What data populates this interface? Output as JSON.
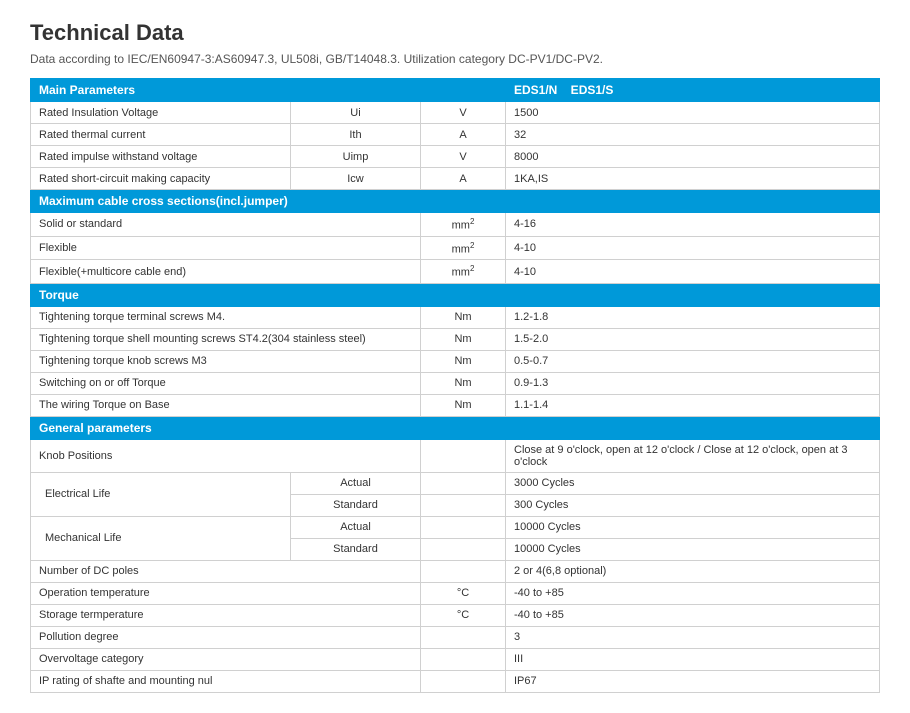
{
  "title": "Technical Data",
  "subtitle": "Data according to IEC/EN60947-3:AS60947.3, UL508i, GB/T14048.3. Utilization category DC-PV1/DC-PV2.",
  "headers": {
    "main": "Main Parameters",
    "models": "EDS1/N    EDS1/S",
    "cable": "Maximum cable cross sections(incl.jumper)",
    "torque": "Torque",
    "general": "General parameters"
  },
  "main": [
    {
      "p": "Rated Insulation Voltage",
      "sym": "Ui",
      "unit": "V",
      "val": "1500"
    },
    {
      "p": "Rated thermal current",
      "sym": "Ith",
      "unit": "A",
      "val": "32"
    },
    {
      "p": "Rated impulse withstand voltage",
      "sym": "Uimp",
      "unit": "V",
      "val": "8000"
    },
    {
      "p": "Rated short-circuit making capacity",
      "sym": "Icw",
      "unit": "A",
      "val": "1KA,IS"
    }
  ],
  "cable": [
    {
      "p": "Solid or standard",
      "unit": "mm²",
      "val": "4-16"
    },
    {
      "p": "Flexible",
      "unit": "mm²",
      "val": "4-10"
    },
    {
      "p": "Flexible(+multicore cable end)",
      "unit": "mm²",
      "val": "4-10"
    }
  ],
  "torque": [
    {
      "p": "Tightening torque terminal screws M4.",
      "unit": "Nm",
      "val": "1.2-1.8"
    },
    {
      "p": "Tightening torque shell mounting screws ST4.2(304 stainless steel)",
      "unit": "Nm",
      "val": "1.5-2.0"
    },
    {
      "p": "Tightening torque knob screws M3",
      "unit": "Nm",
      "val": "0.5-0.7"
    },
    {
      "p": "Switching on or off Torque",
      "unit": "Nm",
      "val": "0.9-1.3"
    },
    {
      "p": "The wiring Torque on Base",
      "unit": "Nm",
      "val": "1.1-1.4"
    }
  ],
  "general": {
    "knob": {
      "p": "Knob Positions",
      "val": "Close at 9 o'clock, open at 12 o'clock / Close at 12 o'clock, open at 3 o'clock"
    },
    "elec_label": "Electrical Life",
    "elec_actual": {
      "s": "Actual",
      "val": "3000 Cycles"
    },
    "elec_std": {
      "s": "Standard",
      "val": "300 Cycles"
    },
    "mech_label": "Mechanical Life",
    "mech_actual": {
      "s": "Actual",
      "val": "10000 Cycles"
    },
    "mech_std": {
      "s": "Standard",
      "val": "10000 Cycles"
    },
    "rest": [
      {
        "p": "Number of DC poles",
        "unit": "",
        "val": "2 or 4(6,8 optional)"
      },
      {
        "p": "Operation temperature",
        "unit": "°C",
        "val": "-40 to +85"
      },
      {
        "p": "Storage termperature",
        "unit": "°C",
        "val": "-40 to +85"
      },
      {
        "p": "Pollution degree",
        "unit": "",
        "val": "3"
      },
      {
        "p": "Overvoltage category",
        "unit": "",
        "val": "III"
      },
      {
        "p": "IP rating of shafte and mounting nul",
        "unit": "",
        "val": "IP67"
      }
    ]
  }
}
